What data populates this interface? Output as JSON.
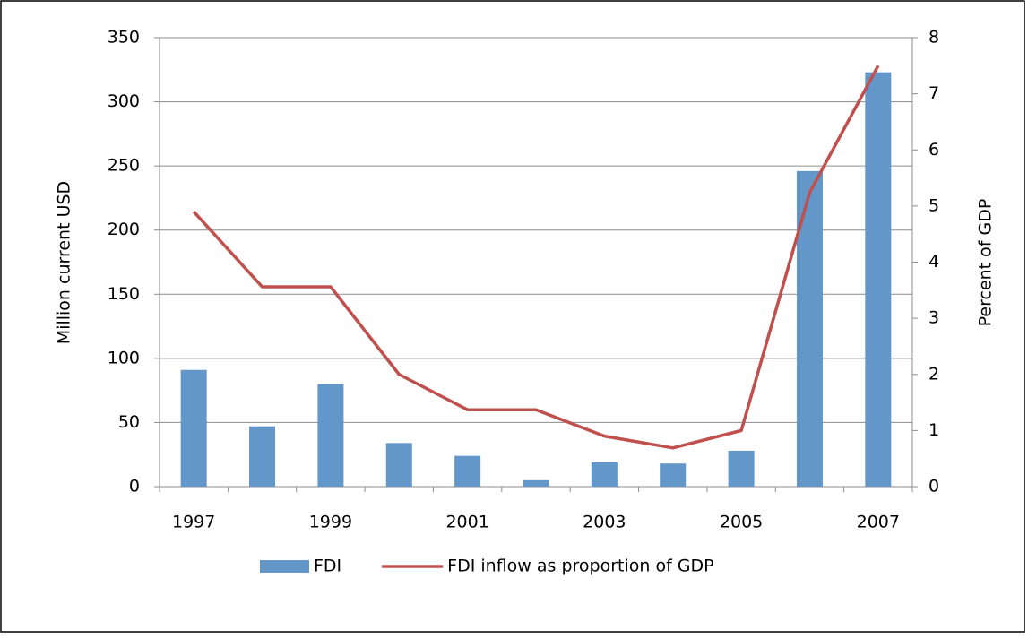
{
  "chart_data": {
    "type": "bar_line",
    "categories": [
      "1997",
      null,
      "1999",
      null,
      "2001",
      null,
      "2003",
      null,
      "2005",
      null,
      "2007"
    ],
    "series": [
      {
        "name": "FDI",
        "type": "bar",
        "color": "#6497c9",
        "values": [
          91,
          47,
          80,
          34,
          24,
          5,
          19,
          18,
          28,
          246,
          323
        ]
      },
      {
        "name": "FDI inflow as proportion of GDP",
        "type": "line",
        "axis": "y2",
        "color": "#c0504d",
        "values": [
          4.9,
          3.56,
          3.56,
          2.0,
          1.37,
          1.37,
          0.9,
          0.69,
          1.0,
          5.24,
          7.5
        ]
      }
    ],
    "ylabel": "Million current USD",
    "y2label": "Percent of GDP",
    "ylim": [
      0,
      350
    ],
    "yticks": [
      0,
      50,
      100,
      150,
      200,
      250,
      300,
      350
    ],
    "y2lim": [
      0,
      8
    ],
    "y2ticks": [
      0,
      1,
      2,
      3,
      4,
      5,
      6,
      7,
      8
    ],
    "grid": true,
    "legend": "bottom"
  }
}
